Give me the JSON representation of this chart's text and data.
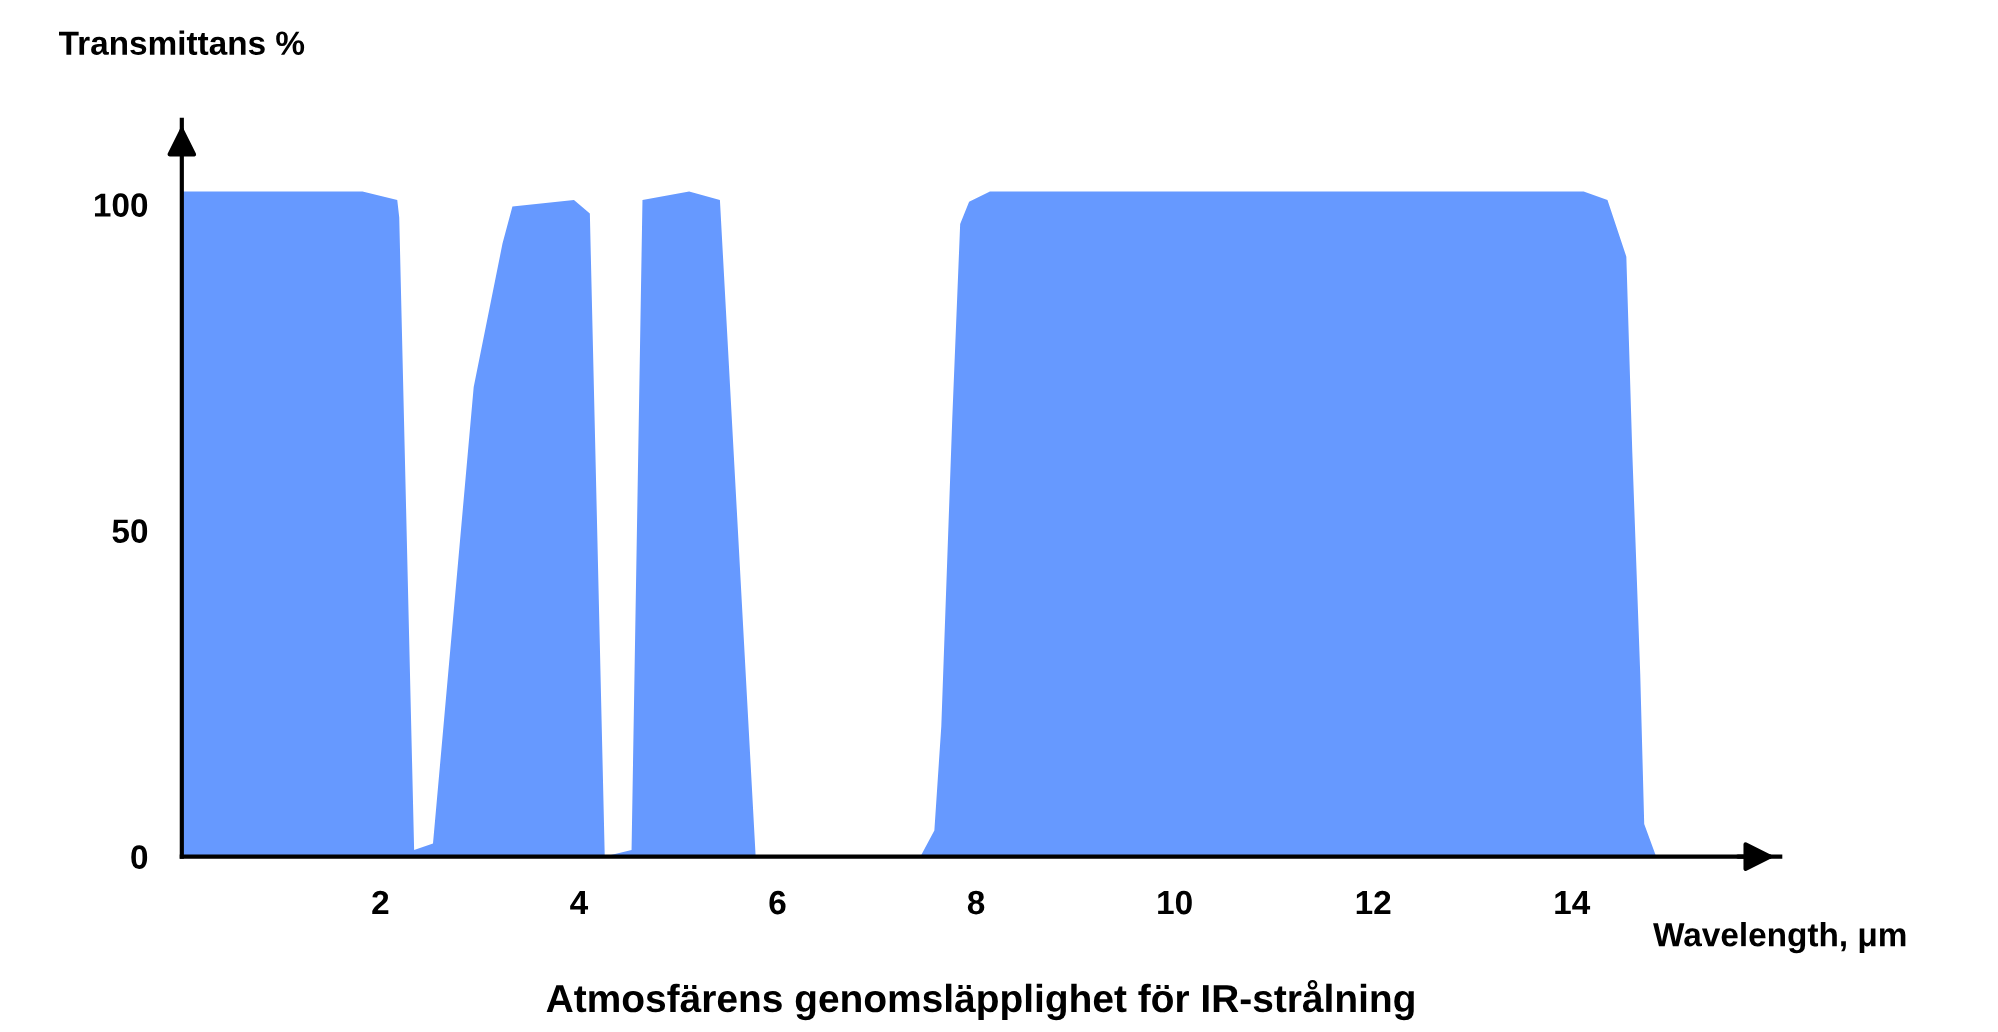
{
  "chart_data": {
    "type": "area",
    "title": "Atmosfärens genomsläpplighet för IR-strålning",
    "xlabel": "Wavelength, μm",
    "ylabel": "Transmittans %",
    "x": [
      0,
      1.82,
      2.17,
      2.19,
      2.34,
      2.53,
      2.94,
      3.23,
      3.33,
      3.95,
      4.11,
      4.26,
      4.53,
      4.64,
      5.11,
      5.42,
      5.78,
      7.44,
      7.58,
      7.65,
      7.76,
      7.84,
      7.93,
      8.14,
      14.12,
      14.36,
      14.55,
      14.61,
      14.69,
      14.73,
      14.85
    ],
    "series": [
      {
        "color": "#6699ff",
        "values": [
          102,
          102,
          100.7,
          98,
          1,
          2,
          72,
          94,
          99.7,
          100.7,
          98.6,
          0,
          1,
          100.7,
          102,
          100.7,
          0,
          0,
          4,
          20,
          67,
          97,
          100.4,
          102,
          102,
          100.7,
          92,
          62,
          28,
          5,
          0
        ]
      }
    ],
    "xlim": [
      0,
      16.1
    ],
    "ylim": [
      0,
      113
    ],
    "xticks": [
      2,
      4,
      6,
      8,
      10,
      12,
      14
    ],
    "yticks": [
      0,
      50,
      100
    ],
    "grid": false,
    "legend": false
  }
}
